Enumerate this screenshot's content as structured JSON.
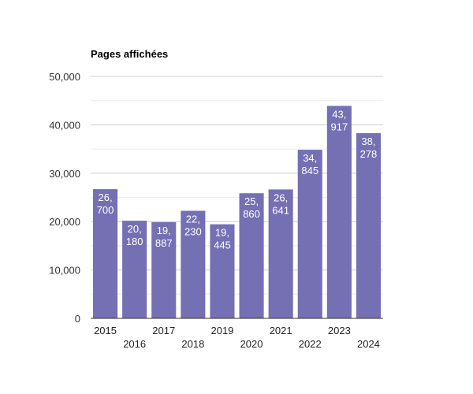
{
  "chart_data": {
    "type": "bar",
    "title": "Pages affichées",
    "xlabel": "",
    "ylabel": "",
    "categories": [
      "2015",
      "2016",
      "2017",
      "2018",
      "2019",
      "2020",
      "2021",
      "2022",
      "2023",
      "2024"
    ],
    "values": [
      26700,
      20180,
      19887,
      22230,
      19445,
      25860,
      26641,
      34845,
      43917,
      38278
    ],
    "value_labels": [
      [
        "26,",
        "700"
      ],
      [
        "20,",
        "180"
      ],
      [
        "19,",
        "887"
      ],
      [
        "22,",
        "230"
      ],
      [
        "19,",
        "445"
      ],
      [
        "25,",
        "860"
      ],
      [
        "26,",
        "641"
      ],
      [
        "34,",
        "845"
      ],
      [
        "43,",
        "917"
      ],
      [
        "38,",
        "278"
      ]
    ],
    "ylim": [
      0,
      50000
    ],
    "yticks": [
      0,
      10000,
      20000,
      30000,
      40000,
      50000
    ],
    "ytick_labels": [
      "0",
      "10,000",
      "20,000",
      "30,000",
      "40,000",
      "50,000"
    ],
    "grid": true,
    "legend": "none",
    "bar_color": "#7570b3"
  }
}
